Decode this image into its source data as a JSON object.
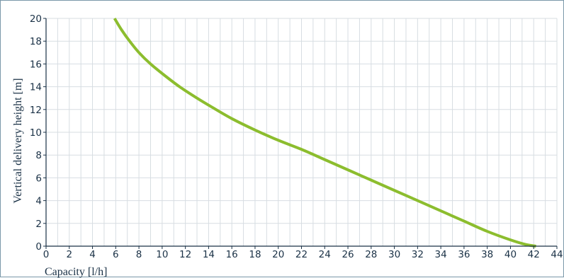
{
  "chart_data": {
    "type": "line",
    "title": "",
    "xlabel": "Capacity [l/h]",
    "ylabel": "Vertical delivery height [m]",
    "xlim": [
      0,
      44
    ],
    "ylim": [
      0,
      20
    ],
    "x_ticks": [
      0,
      2,
      4,
      6,
      8,
      10,
      12,
      14,
      16,
      18,
      20,
      22,
      24,
      26,
      28,
      30,
      32,
      34,
      36,
      38,
      40,
      42,
      44
    ],
    "y_ticks": [
      0,
      2,
      4,
      6,
      8,
      10,
      12,
      14,
      16,
      18,
      20
    ],
    "x_minor_step": 1,
    "grid": true,
    "series": [
      {
        "color": "#8cbd2e",
        "points": [
          [
            5.9,
            20
          ],
          [
            6.5,
            19.0
          ],
          [
            7.2,
            18.0
          ],
          [
            8.0,
            17.0
          ],
          [
            9.0,
            16.0
          ],
          [
            10.2,
            15.0
          ],
          [
            11.5,
            14.0
          ],
          [
            13.0,
            13.0
          ],
          [
            14.3,
            12.2
          ],
          [
            16.0,
            11.2
          ],
          [
            18.0,
            10.2
          ],
          [
            20.0,
            9.3
          ],
          [
            22.0,
            8.5
          ],
          [
            24.0,
            7.6
          ],
          [
            26.0,
            6.7
          ],
          [
            28.0,
            5.8
          ],
          [
            30.0,
            4.9
          ],
          [
            32.0,
            4.0
          ],
          [
            34.0,
            3.1
          ],
          [
            36.0,
            2.2
          ],
          [
            38.0,
            1.3
          ],
          [
            40.0,
            0.55
          ],
          [
            41.3,
            0.15
          ],
          [
            42.2,
            0
          ]
        ]
      }
    ]
  },
  "colors": {
    "frame": "#7a98a9",
    "axis": "#1a3146",
    "grid": "#d7dde2",
    "tick_label": "#1a3146"
  }
}
